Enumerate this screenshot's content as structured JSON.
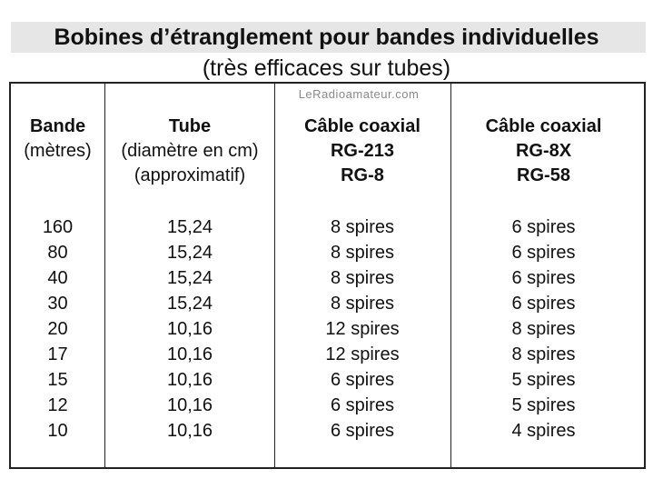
{
  "title": "Bobines d’étranglement pour bandes individuelles",
  "subtitle": "(très efficaces sur tubes)",
  "watermark": "LeRadioamateur.com",
  "headers": {
    "band": {
      "line1": "Bande",
      "line2": "(mètres)"
    },
    "tube": {
      "line1": "Tube",
      "line2": "(diamètre en cm)",
      "line3": "(approximatif)"
    },
    "coax1": {
      "line1": "Câble coaxial",
      "line2": "RG-213",
      "line3": "RG-8"
    },
    "coax2": {
      "line1": "Câble coaxial",
      "line2": "RG-8X",
      "line3": "RG-58"
    }
  },
  "rows": [
    {
      "band": "160",
      "tube": "15,24",
      "coax1": "8 spires",
      "coax2": "6 spires"
    },
    {
      "band": "80",
      "tube": "15,24",
      "coax1": "8 spires",
      "coax2": "6 spires"
    },
    {
      "band": "40",
      "tube": "15,24",
      "coax1": "8 spires",
      "coax2": "6 spires"
    },
    {
      "band": "30",
      "tube": "15,24",
      "coax1": "8 spires",
      "coax2": "6 spires"
    },
    {
      "band": "20",
      "tube": "10,16",
      "coax1": "12 spires",
      "coax2": "8 spires"
    },
    {
      "band": "17",
      "tube": "10,16",
      "coax1": "12 spires",
      "coax2": "8 spires"
    },
    {
      "band": "15",
      "tube": "10,16",
      "coax1": "6 spires",
      "coax2": "5 spires"
    },
    {
      "band": "12",
      "tube": "10,16",
      "coax1": "6 spires",
      "coax2": "5 spires"
    },
    {
      "band": "10",
      "tube": "10,16",
      "coax1": "6 spires",
      "coax2": "4 spires"
    }
  ]
}
